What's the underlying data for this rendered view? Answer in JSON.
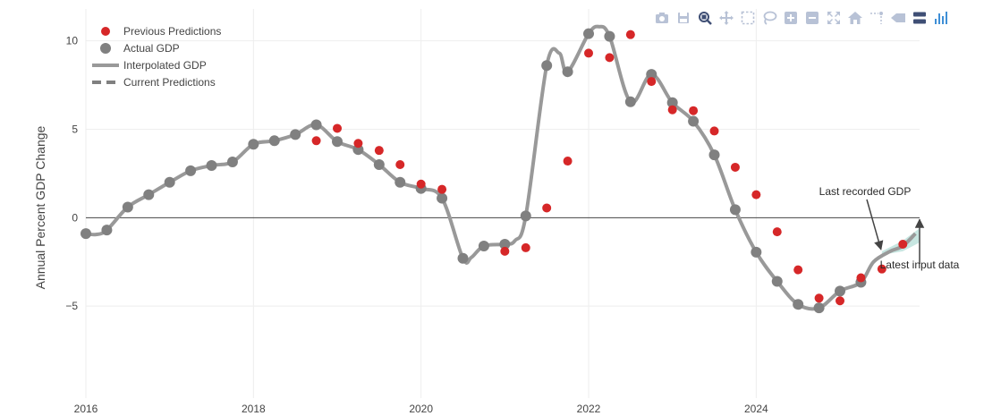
{
  "chart_data": {
    "type": "line",
    "title": "",
    "ylabel": "Annual Percent GDP Change",
    "xlabel": "",
    "xlim": [
      2016,
      2025.95
    ],
    "ylim": [
      -10.2,
      11.8
    ],
    "x_ticks": [
      {
        "value": 2016,
        "label": "2016"
      },
      {
        "value": 2018,
        "label": "2018"
      },
      {
        "value": 2020,
        "label": "2020"
      },
      {
        "value": 2022,
        "label": "2022"
      },
      {
        "value": 2024,
        "label": "2024"
      }
    ],
    "y_ticks": [
      {
        "value": 10,
        "label": "10"
      },
      {
        "value": 5,
        "label": "5"
      },
      {
        "value": 0,
        "label": "0"
      },
      {
        "value": -5,
        "label": "−5"
      }
    ],
    "grid": true,
    "legend_position": "top-left",
    "legend": [
      {
        "label": "Previous Predictions",
        "kind": "dot",
        "color": "#d62728"
      },
      {
        "label": "Actual GDP",
        "kind": "dot",
        "color": "#808080"
      },
      {
        "label": "Interpolated GDP",
        "kind": "line",
        "color": "#999999"
      },
      {
        "label": "Current Predictions",
        "kind": "dash",
        "color": "#808080"
      }
    ],
    "series": [
      {
        "name": "Actual GDP",
        "kind": "markers",
        "color": "#808080",
        "points": [
          [
            2016.0,
            -0.9
          ],
          [
            2016.25,
            -0.7
          ],
          [
            2016.5,
            0.6
          ],
          [
            2016.75,
            1.3
          ],
          [
            2017.0,
            2.0
          ],
          [
            2017.25,
            2.65
          ],
          [
            2017.5,
            2.95
          ],
          [
            2017.75,
            3.15
          ],
          [
            2018.0,
            4.15
          ],
          [
            2018.25,
            4.35
          ],
          [
            2018.5,
            4.7
          ],
          [
            2018.75,
            5.25
          ],
          [
            2019.0,
            4.3
          ],
          [
            2019.25,
            3.85
          ],
          [
            2019.5,
            3.0
          ],
          [
            2019.75,
            2.0
          ],
          [
            2020.0,
            1.65
          ],
          [
            2020.25,
            1.1
          ],
          [
            2020.5,
            -2.3
          ],
          [
            2020.75,
            -1.6
          ],
          [
            2021.0,
            -1.5
          ],
          [
            2021.25,
            0.1
          ],
          [
            2021.5,
            8.6
          ],
          [
            2021.75,
            8.25
          ],
          [
            2022.0,
            10.4
          ],
          [
            2022.25,
            10.25
          ],
          [
            2022.5,
            6.55
          ],
          [
            2022.75,
            8.1
          ],
          [
            2023.0,
            6.5
          ],
          [
            2023.25,
            5.45
          ],
          [
            2023.5,
            3.55
          ],
          [
            2023.75,
            0.45
          ],
          [
            2024.0,
            -1.95
          ],
          [
            2024.25,
            -3.6
          ],
          [
            2024.5,
            -4.9
          ],
          [
            2024.75,
            -5.1
          ],
          [
            2025.0,
            -4.15
          ],
          [
            2025.25,
            -3.65
          ]
        ]
      },
      {
        "name": "Interpolated GDP",
        "kind": "line",
        "color": "#999999",
        "points": [
          [
            2016.0,
            -0.9
          ],
          [
            2016.12,
            -0.95
          ],
          [
            2016.25,
            -0.7
          ],
          [
            2016.5,
            0.6
          ],
          [
            2016.75,
            1.3
          ],
          [
            2017.0,
            2.0
          ],
          [
            2017.25,
            2.65
          ],
          [
            2017.5,
            2.95
          ],
          [
            2017.75,
            3.15
          ],
          [
            2018.0,
            4.15
          ],
          [
            2018.25,
            4.35
          ],
          [
            2018.5,
            4.7
          ],
          [
            2018.75,
            5.25
          ],
          [
            2019.0,
            4.3
          ],
          [
            2019.25,
            3.85
          ],
          [
            2019.5,
            3.0
          ],
          [
            2019.75,
            2.0
          ],
          [
            2020.0,
            1.65
          ],
          [
            2020.25,
            1.1
          ],
          [
            2020.5,
            -2.3
          ],
          [
            2020.6,
            -2.25
          ],
          [
            2020.75,
            -1.6
          ],
          [
            2021.0,
            -1.5
          ],
          [
            2021.12,
            -1.3
          ],
          [
            2021.25,
            0.1
          ],
          [
            2021.5,
            8.6
          ],
          [
            2021.65,
            9.3
          ],
          [
            2021.75,
            8.25
          ],
          [
            2022.0,
            10.4
          ],
          [
            2022.12,
            10.8
          ],
          [
            2022.25,
            10.25
          ],
          [
            2022.5,
            6.55
          ],
          [
            2022.75,
            8.1
          ],
          [
            2023.0,
            6.5
          ],
          [
            2023.25,
            5.45
          ],
          [
            2023.5,
            3.55
          ],
          [
            2023.75,
            0.45
          ],
          [
            2024.0,
            -1.95
          ],
          [
            2024.25,
            -3.6
          ],
          [
            2024.5,
            -4.9
          ],
          [
            2024.75,
            -5.1
          ],
          [
            2025.0,
            -4.15
          ],
          [
            2025.25,
            -3.65
          ],
          [
            2025.4,
            -2.5
          ],
          [
            2025.6,
            -1.9
          ],
          [
            2025.75,
            -1.6
          ],
          [
            2025.9,
            -0.9
          ]
        ]
      },
      {
        "name": "Previous Predictions",
        "kind": "markers",
        "color": "#d62728",
        "points": [
          [
            2018.75,
            4.35
          ],
          [
            2019.0,
            5.05
          ],
          [
            2019.25,
            4.2
          ],
          [
            2019.5,
            3.8
          ],
          [
            2019.75,
            3.0
          ],
          [
            2020.0,
            1.9
          ],
          [
            2020.25,
            1.6
          ],
          [
            2021.0,
            -1.9
          ],
          [
            2021.25,
            -1.7
          ],
          [
            2021.5,
            0.55
          ],
          [
            2021.75,
            3.2
          ],
          [
            2022.0,
            9.3
          ],
          [
            2022.25,
            9.05
          ],
          [
            2022.5,
            10.35
          ],
          [
            2022.75,
            7.7
          ],
          [
            2023.0,
            6.1
          ],
          [
            2023.25,
            6.05
          ],
          [
            2023.5,
            4.9
          ],
          [
            2023.75,
            2.85
          ],
          [
            2024.0,
            1.3
          ],
          [
            2024.25,
            -0.8
          ],
          [
            2024.5,
            -2.95
          ],
          [
            2024.75,
            -4.55
          ],
          [
            2025.0,
            -4.7
          ],
          [
            2025.25,
            -3.4
          ],
          [
            2025.5,
            -2.9
          ],
          [
            2025.75,
            -1.5
          ]
        ]
      }
    ],
    "prediction_band": {
      "color": "#5fb8a8",
      "upper": [
        [
          2025.5,
          -1.9
        ],
        [
          2025.75,
          -1.3
        ],
        [
          2025.95,
          -0.6
        ]
      ],
      "lower": [
        [
          2025.5,
          -2.1
        ],
        [
          2025.75,
          -1.9
        ],
        [
          2025.95,
          -1.4
        ]
      ]
    },
    "annotations": [
      {
        "text": "Last recorded GDP",
        "anchor": "arrow-to-point",
        "point": [
          2025.5,
          -2.0
        ]
      },
      {
        "text": "Latest input data",
        "anchor": "arrow-up",
        "point": [
          2025.95,
          -0.05
        ]
      }
    ]
  },
  "modebar": [
    {
      "name": "camera-icon",
      "tip": "Download plot as a png"
    },
    {
      "name": "save-icon",
      "tip": "Save"
    },
    {
      "name": "zoom-icon",
      "tip": "Zoom"
    },
    {
      "name": "pan-icon",
      "tip": "Pan"
    },
    {
      "name": "box-select-icon",
      "tip": "Box Select"
    },
    {
      "name": "lasso-select-icon",
      "tip": "Lasso Select"
    },
    {
      "name": "zoom-in-icon",
      "tip": "Zoom in"
    },
    {
      "name": "zoom-out-icon",
      "tip": "Zoom out"
    },
    {
      "name": "autoscale-icon",
      "tip": "Autoscale"
    },
    {
      "name": "home-icon",
      "tip": "Reset axes"
    },
    {
      "name": "spike-lines-icon",
      "tip": "Toggle Spike Lines"
    },
    {
      "name": "hover-closest-icon",
      "tip": "Show closest data on hover"
    },
    {
      "name": "hover-compare-icon",
      "tip": "Compare data on hover"
    },
    {
      "name": "plotly-logo-icon",
      "tip": "Produced with Plotly"
    }
  ]
}
